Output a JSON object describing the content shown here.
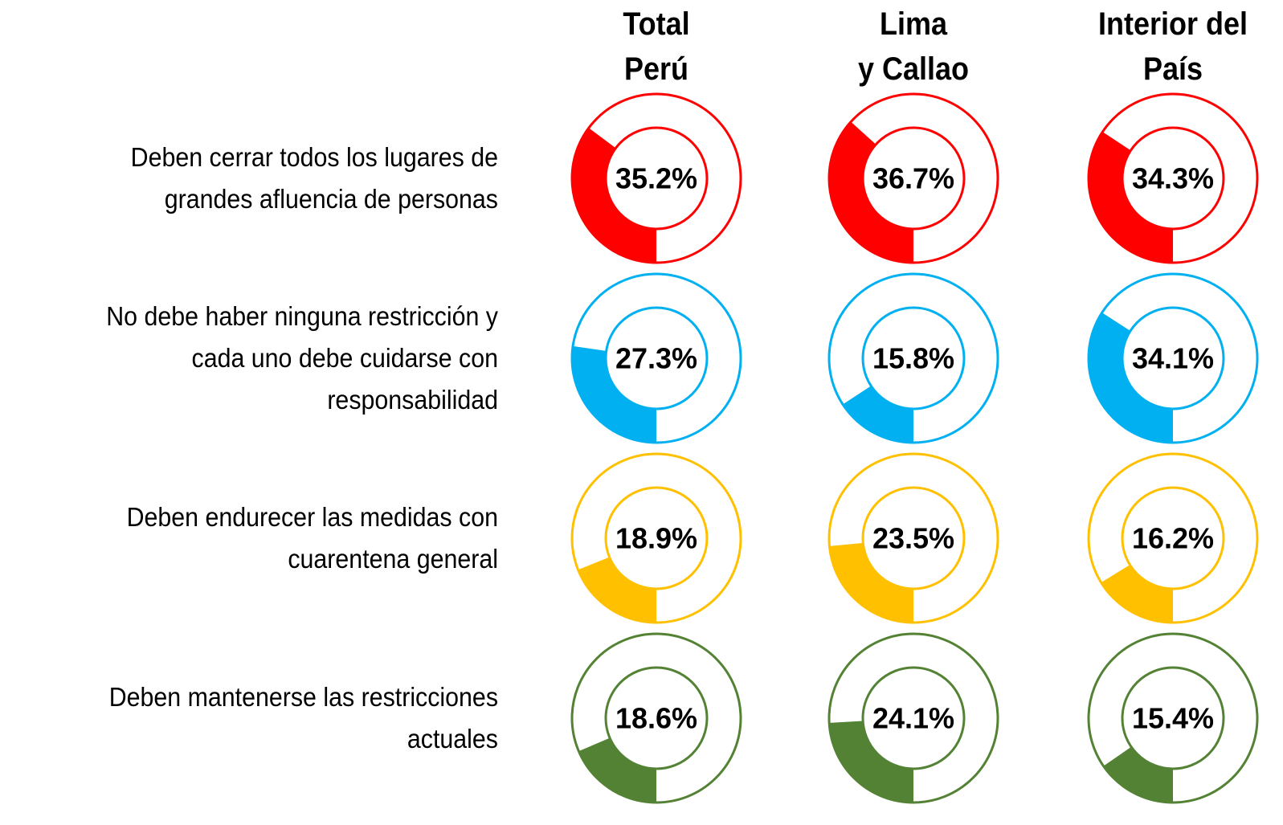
{
  "chart_data": {
    "type": "donut",
    "columns": [
      "Total\nPerú",
      "Lima\ny Callao",
      "Interior del\nPaís"
    ],
    "series": [
      {
        "name": "Deben cerrar todos los lugares de\ngrandes afluencia de personas",
        "color": "#ff0000",
        "values": [
          35.2,
          36.7,
          34.3
        ],
        "value_labels": [
          "35.2%",
          "36.7%",
          "34.3%"
        ]
      },
      {
        "name": "No debe haber ninguna restricción y\ncada uno debe cuidarse con\nresponsabilidad",
        "color": "#00b0f0",
        "values": [
          27.3,
          15.8,
          34.1
        ],
        "value_labels": [
          "27.3%",
          "15.8%",
          "34.1%"
        ]
      },
      {
        "name": "Deben endurecer las medidas con\ncuarentena general",
        "color": "#ffc000",
        "values": [
          18.9,
          23.5,
          16.2
        ],
        "value_labels": [
          "18.9%",
          "23.5%",
          "16.2%"
        ]
      },
      {
        "name": "Deben mantenerse las restricciones\nactuales",
        "color": "#548235",
        "values": [
          18.6,
          24.1,
          15.4
        ],
        "value_labels": [
          "18.6%",
          "24.1%",
          "15.4%"
        ]
      }
    ],
    "ylim": [
      0,
      100
    ]
  }
}
